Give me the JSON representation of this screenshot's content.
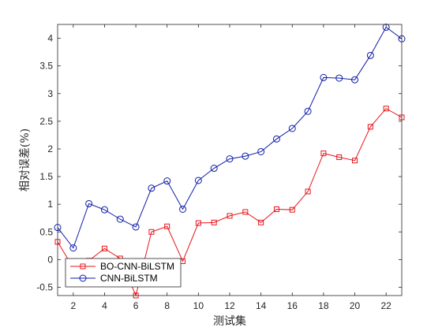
{
  "chart_data": {
    "type": "line",
    "title": "",
    "xlabel": "测试集",
    "ylabel": "相对误差(%)",
    "xlim": [
      1,
      23
    ],
    "ylim": [
      -0.65,
      4.25
    ],
    "xticks": [
      2,
      4,
      6,
      8,
      10,
      12,
      14,
      16,
      18,
      20,
      22
    ],
    "yticks": [
      -0.5,
      0,
      0.5,
      1,
      1.5,
      2,
      2.5,
      3,
      3.5,
      4
    ],
    "ytick_labels": [
      "-0.5",
      "0",
      "0.5",
      "1",
      "1.5",
      "2",
      "2.5",
      "3",
      "3.5",
      "4"
    ],
    "grid": false,
    "legend_position": "bottom-left",
    "x": [
      1,
      2,
      3,
      4,
      5,
      6,
      7,
      8,
      9,
      10,
      11,
      12,
      13,
      14,
      15,
      16,
      17,
      18,
      19,
      20,
      21,
      22,
      23
    ],
    "series": [
      {
        "name": "BO-CNN-BiLSTM",
        "color": "#e8151b",
        "marker": "square",
        "values": [
          0.32,
          -0.15,
          -0.02,
          0.2,
          0.02,
          -0.65,
          0.5,
          0.6,
          -0.03,
          0.66,
          0.67,
          0.79,
          0.86,
          0.67,
          0.91,
          0.9,
          1.23,
          1.92,
          1.85,
          1.79,
          2.4,
          2.73,
          2.57
        ]
      },
      {
        "name": "CNN-BiLSTM",
        "color": "#0f1da8",
        "marker": "circle",
        "values": [
          0.58,
          0.21,
          1.01,
          0.9,
          0.73,
          0.59,
          1.29,
          1.42,
          0.91,
          1.43,
          1.65,
          1.82,
          1.87,
          1.95,
          2.18,
          2.37,
          2.68,
          3.29,
          3.28,
          3.25,
          3.69,
          4.2,
          3.99
        ]
      }
    ]
  }
}
